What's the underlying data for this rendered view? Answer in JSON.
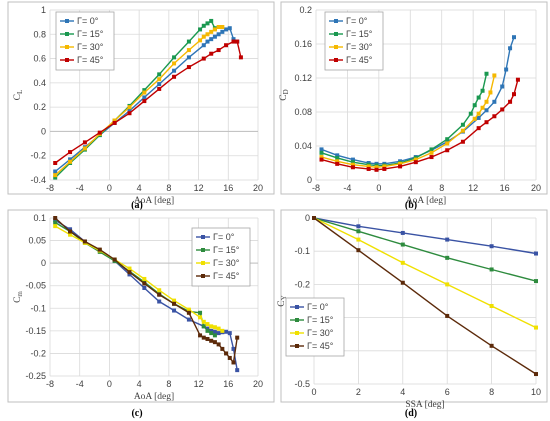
{
  "chart_data": [
    {
      "type": "line",
      "caption": "(a)",
      "ylabel": "C_L",
      "xlabel": "AoA [deg]",
      "xlim": [
        -8,
        20
      ],
      "ylim": [
        -0.4,
        1.0
      ],
      "xticks": [
        -8,
        -4,
        0,
        4,
        8,
        12,
        16,
        20
      ],
      "yticks": [
        -0.4,
        -0.2,
        0,
        0.2,
        0.4,
        0.6,
        0.8,
        1
      ],
      "ytick_labels": [
        "-0.4",
        "-0.2",
        "0",
        "0.2",
        "0.4",
        "0.6",
        "0.8",
        "1"
      ],
      "grid": true,
      "legend_position": "left-top",
      "series": [
        {
          "name": "Γ= 0°",
          "color": "#2e75b6",
          "marker": "square",
          "x": [
            -7.3,
            -5.3,
            -3.3,
            -1.3,
            0.7,
            2.7,
            4.7,
            6.7,
            8.7,
            10.7,
            12.7,
            13.2,
            13.7,
            14.2,
            14.7,
            15.2,
            15.7,
            16.2,
            16.7,
            17.2
          ],
          "y": [
            -0.33,
            -0.23,
            -0.13,
            -0.03,
            0.07,
            0.17,
            0.28,
            0.39,
            0.5,
            0.61,
            0.71,
            0.74,
            0.76,
            0.78,
            0.8,
            0.82,
            0.84,
            0.85,
            0.76,
            0.74
          ]
        },
        {
          "name": "Γ= 15°",
          "color": "#1a9850",
          "marker": "square",
          "x": [
            -7.3,
            -5.3,
            -3.3,
            -1.3,
            0.7,
            2.7,
            4.7,
            6.7,
            8.7,
            10.7,
            12.2,
            12.7,
            13.2,
            13.7,
            14.2
          ],
          "y": [
            -0.38,
            -0.26,
            -0.15,
            -0.03,
            0.09,
            0.21,
            0.34,
            0.47,
            0.61,
            0.74,
            0.84,
            0.87,
            0.89,
            0.91,
            0.85
          ]
        },
        {
          "name": "Γ= 30°",
          "color": "#f5b800",
          "marker": "square",
          "x": [
            -7.3,
            -5.3,
            -3.3,
            -1.3,
            0.7,
            2.7,
            4.7,
            6.7,
            8.7,
            10.7,
            12.2,
            12.7,
            13.2,
            13.7,
            14.2,
            14.7,
            15.2
          ],
          "y": [
            -0.36,
            -0.25,
            -0.14,
            -0.02,
            0.09,
            0.2,
            0.32,
            0.43,
            0.56,
            0.67,
            0.75,
            0.78,
            0.8,
            0.82,
            0.84,
            0.86,
            0.86
          ]
        },
        {
          "name": "Γ= 45°",
          "color": "#c00000",
          "marker": "square",
          "x": [
            -7.3,
            -5.3,
            -3.3,
            -1.3,
            0.7,
            2.7,
            4.7,
            6.7,
            8.7,
            10.7,
            12.7,
            13.7,
            14.7,
            15.7,
            16.7,
            17.2,
            17.7
          ],
          "y": [
            -0.26,
            -0.17,
            -0.09,
            -0.01,
            0.07,
            0.15,
            0.25,
            0.35,
            0.45,
            0.53,
            0.6,
            0.64,
            0.67,
            0.71,
            0.74,
            0.74,
            0.61
          ]
        }
      ]
    },
    {
      "type": "line",
      "caption": "(b)",
      "ylabel": "C_D",
      "xlabel": "AoA [deg]",
      "xlim": [
        -8,
        20
      ],
      "ylim": [
        0,
        0.2
      ],
      "xticks": [
        -8,
        -4,
        0,
        4,
        8,
        12,
        16,
        20
      ],
      "yticks": [
        0,
        0.04,
        0.08,
        0.12,
        0.16,
        0.2
      ],
      "ytick_labels": [
        "0",
        "0.04",
        "0.08",
        "0.12",
        "0.16",
        "0.2"
      ],
      "grid": true,
      "legend_position": "left-top",
      "series": [
        {
          "name": "Γ= 0°",
          "color": "#2e75b6",
          "marker": "square",
          "x": [
            -7.3,
            -5.3,
            -3.3,
            -1.3,
            -0.3,
            0.7,
            2.7,
            4.7,
            6.7,
            8.7,
            10.7,
            12.7,
            13.7,
            14.7,
            15.7,
            16.2,
            16.7,
            17.2
          ],
          "y": [
            0.036,
            0.029,
            0.024,
            0.02,
            0.019,
            0.019,
            0.022,
            0.027,
            0.035,
            0.045,
            0.057,
            0.073,
            0.082,
            0.092,
            0.11,
            0.13,
            0.155,
            0.168
          ]
        },
        {
          "name": "Γ= 15°",
          "color": "#1a9850",
          "marker": "square",
          "x": [
            -7.3,
            -5.3,
            -3.3,
            -1.3,
            -0.3,
            0.7,
            2.7,
            4.7,
            6.7,
            8.7,
            10.7,
            11.7,
            12.2,
            12.7,
            13.2,
            13.7
          ],
          "y": [
            0.032,
            0.026,
            0.021,
            0.018,
            0.017,
            0.017,
            0.02,
            0.026,
            0.036,
            0.048,
            0.065,
            0.078,
            0.088,
            0.097,
            0.105,
            0.125
          ]
        },
        {
          "name": "Γ= 30°",
          "color": "#f5b800",
          "marker": "square",
          "x": [
            -7.3,
            -5.3,
            -3.3,
            -1.3,
            -0.3,
            0.7,
            2.7,
            4.7,
            6.7,
            8.7,
            10.7,
            12.2,
            12.7,
            13.2,
            13.7,
            14.2,
            14.7
          ],
          "y": [
            0.027,
            0.022,
            0.018,
            0.016,
            0.015,
            0.016,
            0.019,
            0.024,
            0.032,
            0.043,
            0.058,
            0.072,
            0.078,
            0.085,
            0.092,
            0.103,
            0.123
          ]
        },
        {
          "name": "Γ= 45°",
          "color": "#c00000",
          "marker": "square",
          "x": [
            -7.3,
            -5.3,
            -3.3,
            -1.3,
            -0.3,
            0.7,
            2.7,
            4.7,
            6.7,
            8.7,
            10.7,
            12.7,
            13.7,
            14.7,
            15.7,
            16.7,
            17.2,
            17.7
          ],
          "y": [
            0.024,
            0.019,
            0.015,
            0.013,
            0.012,
            0.013,
            0.016,
            0.021,
            0.027,
            0.035,
            0.045,
            0.061,
            0.068,
            0.075,
            0.083,
            0.092,
            0.101,
            0.118
          ]
        }
      ]
    },
    {
      "type": "line",
      "caption": "(c)",
      "ylabel": "C_m",
      "xlabel": "AoA [deg]",
      "xlim": [
        -8,
        20
      ],
      "ylim": [
        -0.25,
        0.1
      ],
      "xticks": [
        -8,
        -4,
        0,
        4,
        8,
        12,
        16,
        20
      ],
      "yticks": [
        -0.25,
        -0.2,
        -0.15,
        -0.1,
        -0.05,
        0,
        0.05,
        0.1
      ],
      "ytick_labels": [
        "-0.25",
        "-0.2",
        "-0.15",
        "-0.1",
        "-0.05",
        "0",
        "0.05",
        "0.1"
      ],
      "grid": true,
      "legend_position": "right-top",
      "series": [
        {
          "name": "Γ= 0°",
          "color": "#3a53a4",
          "marker": "square",
          "x": [
            -7.3,
            -5.3,
            -3.3,
            -1.3,
            0.7,
            2.7,
            4.7,
            6.7,
            8.7,
            10.7,
            12.7,
            13.2,
            13.7,
            14.2,
            14.7,
            15.2,
            15.7,
            16.2,
            16.7,
            17.2
          ],
          "y": [
            0.095,
            0.075,
            0.048,
            0.028,
            0.005,
            -0.025,
            -0.055,
            -0.085,
            -0.105,
            -0.125,
            -0.14,
            -0.145,
            -0.15,
            -0.152,
            -0.155,
            -0.153,
            -0.152,
            -0.155,
            -0.19,
            -0.237
          ]
        },
        {
          "name": "Γ= 15°",
          "color": "#2e8b3e",
          "marker": "square",
          "x": [
            -7.3,
            -5.3,
            -3.3,
            -1.3,
            0.7,
            2.7,
            4.7,
            6.7,
            8.7,
            10.7,
            12.2,
            12.7,
            13.2,
            13.7,
            14.2
          ],
          "y": [
            0.09,
            0.07,
            0.045,
            0.025,
            0.005,
            -0.018,
            -0.042,
            -0.068,
            -0.09,
            -0.107,
            -0.11,
            -0.14,
            -0.15,
            -0.155,
            -0.16
          ]
        },
        {
          "name": "Γ= 30°",
          "color": "#f0e000",
          "marker": "square",
          "x": [
            -7.3,
            -5.3,
            -3.3,
            -1.3,
            0.7,
            2.7,
            4.7,
            6.7,
            8.7,
            10.7,
            12.2,
            12.7,
            13.2,
            13.7,
            14.2,
            14.7,
            15.2
          ],
          "y": [
            0.082,
            0.063,
            0.045,
            0.028,
            0.008,
            -0.012,
            -0.035,
            -0.06,
            -0.083,
            -0.103,
            -0.12,
            -0.13,
            -0.135,
            -0.14,
            -0.142,
            -0.145,
            -0.15
          ]
        },
        {
          "name": "Γ= 45°",
          "color": "#5c2a0a",
          "marker": "square",
          "x": [
            -7.3,
            -5.3,
            -3.3,
            -1.3,
            0.7,
            2.7,
            4.7,
            6.7,
            8.7,
            10.7,
            12.2,
            12.7,
            13.2,
            13.7,
            14.2,
            14.7,
            15.2,
            15.7,
            16.2,
            16.7,
            17.2
          ],
          "y": [
            0.1,
            0.07,
            0.048,
            0.03,
            0.008,
            -0.02,
            -0.045,
            -0.07,
            -0.09,
            -0.11,
            -0.16,
            -0.165,
            -0.168,
            -0.172,
            -0.175,
            -0.18,
            -0.19,
            -0.2,
            -0.21,
            -0.22,
            -0.165
          ]
        }
      ]
    },
    {
      "type": "line",
      "caption": "(d)",
      "ylabel": "C_Y",
      "xlabel": "SSA [deg]",
      "xlim": [
        0,
        10
      ],
      "ylim": [
        -0.5,
        0
      ],
      "xticks": [
        0,
        2,
        4,
        6,
        8,
        10
      ],
      "yticks": [
        -0.5,
        -0.4,
        -0.3,
        -0.2,
        -0.1,
        0
      ],
      "ytick_labels": [
        "-0.5",
        "-0.4",
        "-0.3",
        "-0.2",
        "-0.1",
        "0"
      ],
      "grid": true,
      "legend_position": "left-bottom",
      "series": [
        {
          "name": "Γ= 0°",
          "color": "#3a53a4",
          "marker": "square",
          "x": [
            0,
            2,
            4,
            6,
            8,
            10
          ],
          "y": [
            0,
            -0.025,
            -0.045,
            -0.065,
            -0.085,
            -0.107
          ]
        },
        {
          "name": "Γ= 15°",
          "color": "#2e8b3e",
          "marker": "square",
          "x": [
            0,
            2,
            4,
            6,
            8,
            10
          ],
          "y": [
            0,
            -0.04,
            -0.08,
            -0.12,
            -0.155,
            -0.19
          ]
        },
        {
          "name": "Γ= 30°",
          "color": "#f0e000",
          "marker": "square",
          "x": [
            0,
            2,
            4,
            6,
            8,
            10
          ],
          "y": [
            0,
            -0.065,
            -0.135,
            -0.2,
            -0.265,
            -0.33
          ]
        },
        {
          "name": "Γ= 45°",
          "color": "#5c2a0a",
          "marker": "square",
          "x": [
            0,
            2,
            4,
            6,
            8,
            10
          ],
          "y": [
            0,
            -0.097,
            -0.195,
            -0.295,
            -0.385,
            -0.47
          ]
        }
      ]
    }
  ]
}
